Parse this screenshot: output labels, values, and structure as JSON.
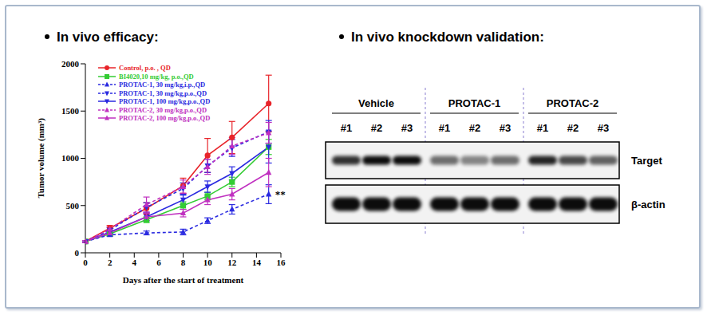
{
  "chart_data": {
    "type": "line",
    "title": "In vivo efficacy:",
    "x_label": "Days after the start of treatment",
    "y_label": "Tumor volume (mm³)",
    "x": [
      0,
      2,
      5,
      8,
      10,
      12,
      15
    ],
    "xlim": [
      0,
      16
    ],
    "xticks": [
      0,
      2,
      4,
      6,
      8,
      10,
      12,
      14,
      16
    ],
    "ylim": [
      0,
      2000
    ],
    "yticks": [
      0,
      500,
      1000,
      1500,
      2000
    ],
    "grid": false,
    "legend": "upper left",
    "series": [
      {
        "name": "Control, p.o. , QD",
        "color": "#e8242a",
        "line_style": "solid",
        "marker": "circle",
        "values": [
          120,
          260,
          470,
          710,
          1030,
          1220,
          1580
        ],
        "errors": [
          10,
          30,
          60,
          80,
          180,
          170,
          300
        ]
      },
      {
        "name": "BI4020,10 mg/kg, p.o.,QD",
        "color": "#33cc33",
        "line_style": "solid",
        "marker": "square",
        "values": [
          120,
          200,
          350,
          500,
          600,
          750,
          1120
        ],
        "errors": [
          10,
          20,
          30,
          40,
          40,
          50,
          80
        ]
      },
      {
        "name": "PROTAC-1, 30 mg/kg,i.p.,QD",
        "color": "#2a2ae0",
        "line_style": "dashed",
        "marker": "triangle",
        "values": [
          120,
          190,
          210,
          220,
          340,
          460,
          620
        ],
        "errors": [
          10,
          15,
          20,
          30,
          30,
          50,
          100
        ]
      },
      {
        "name": "PROTAC-1, 30 mg/kg,p.o.,QD",
        "color": "#2a2ae0",
        "line_style": "dashed",
        "marker": "triangle-down",
        "values": [
          120,
          240,
          480,
          680,
          920,
          1110,
          1280
        ],
        "errors": [
          10,
          25,
          50,
          60,
          70,
          90,
          120
        ]
      },
      {
        "name": "PROTAC-1, 100 mg/kg,p.o.,QD",
        "color": "#2a2ae0",
        "line_style": "solid",
        "marker": "triangle-down",
        "values": [
          120,
          220,
          380,
          560,
          700,
          840,
          1120
        ],
        "errors": [
          10,
          20,
          40,
          50,
          60,
          70,
          170
        ]
      },
      {
        "name": "PROTAC-2, 30 mg/kg,p.o.,QD",
        "color": "#c030c0",
        "line_style": "dashed",
        "marker": "triangle",
        "values": [
          120,
          250,
          510,
          700,
          910,
          1130,
          1270
        ],
        "errors": [
          10,
          25,
          80,
          70,
          80,
          90,
          110
        ]
      },
      {
        "name": "PROTAC-2, 100 mg/kg,p.o.,QD",
        "color": "#c030c0",
        "line_style": "solid",
        "marker": "triangle",
        "values": [
          120,
          210,
          380,
          420,
          560,
          620,
          850
        ],
        "errors": [
          10,
          20,
          40,
          40,
          50,
          60,
          150
        ]
      }
    ],
    "annotations": [
      {
        "text": "**",
        "x": 15,
        "y": 620
      }
    ]
  },
  "blot": {
    "title": "In vivo knockdown validation:",
    "groups": [
      {
        "name": "Vehicle",
        "lanes": [
          "#1",
          "#2",
          "#3"
        ]
      },
      {
        "name": "PROTAC-1",
        "lanes": [
          "#1",
          "#2",
          "#3"
        ]
      },
      {
        "name": "PROTAC-2",
        "lanes": [
          "#1",
          "#2",
          "#3"
        ]
      }
    ],
    "rows": [
      {
        "label": "Target",
        "intensity": [
          0.8,
          0.95,
          0.95,
          0.55,
          0.45,
          0.55,
          0.85,
          0.7,
          0.6
        ]
      },
      {
        "label": "β-actin",
        "intensity": [
          0.95,
          0.95,
          0.95,
          0.95,
          0.95,
          0.95,
          0.95,
          0.95,
          0.95
        ]
      }
    ]
  }
}
